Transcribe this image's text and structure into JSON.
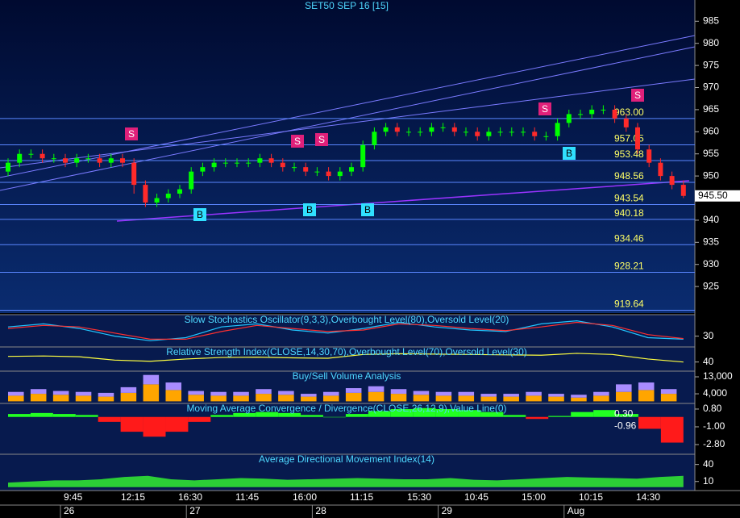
{
  "chart_data": [
    {
      "type": "candlestick",
      "title": "SET50 SEP 16  [15]",
      "open": [
        951,
        953,
        955,
        955,
        954,
        954,
        953,
        954,
        954,
        953,
        954,
        953,
        948,
        944,
        945,
        946,
        947,
        951,
        952,
        953,
        953,
        953,
        953,
        954,
        953,
        952,
        952,
        951,
        951,
        950,
        951,
        952,
        957,
        960,
        961,
        960,
        960,
        960,
        961,
        961,
        960,
        960,
        959,
        960,
        960,
        960,
        960,
        959,
        959,
        962,
        964,
        964,
        965,
        965,
        963,
        961,
        956,
        953,
        950,
        948
      ],
      "high": [
        954,
        956,
        956,
        956,
        955,
        955,
        955,
        955,
        955,
        955,
        955,
        954,
        949,
        946,
        947,
        948,
        952,
        953,
        954,
        954,
        954,
        954,
        955,
        955,
        954,
        953,
        953,
        952,
        952,
        952,
        953,
        958,
        961,
        962,
        962,
        961,
        961,
        962,
        962,
        962,
        961,
        961,
        961,
        961,
        961,
        961,
        961,
        960,
        963,
        965,
        965,
        966,
        966,
        966,
        964,
        962,
        957,
        954,
        951,
        949
      ],
      "low": [
        950,
        952,
        954,
        953,
        953,
        952,
        952,
        953,
        952,
        952,
        952,
        946,
        943,
        943,
        944,
        945,
        946,
        950,
        951,
        952,
        952,
        952,
        952,
        952,
        951,
        951,
        950,
        950,
        949,
        949,
        950,
        951,
        956,
        959,
        959,
        959,
        959,
        959,
        960,
        959,
        959,
        958,
        958,
        959,
        959,
        959,
        958,
        958,
        958,
        961,
        963,
        963,
        964,
        962,
        960,
        955,
        952,
        949,
        947,
        945
      ],
      "close": [
        953,
        955,
        955,
        954,
        954,
        953,
        954,
        954,
        953,
        954,
        953,
        948,
        944,
        945,
        946,
        947,
        951,
        952,
        953,
        953,
        953,
        953,
        954,
        953,
        952,
        952,
        951,
        951,
        950,
        951,
        952,
        957,
        960,
        961,
        960,
        960,
        960,
        961,
        961,
        960,
        960,
        959,
        960,
        960,
        960,
        960,
        959,
        959,
        962,
        964,
        964,
        965,
        965,
        963,
        961,
        956,
        953,
        950,
        948,
        945.5
      ],
      "up_color": "#00ff00",
      "down_color": "#ff2a2a",
      "ylim": [
        919,
        989.8
      ],
      "yticks": [
        925,
        930,
        935,
        940,
        945,
        950,
        955,
        960,
        965,
        970,
        975,
        980,
        985
      ],
      "levels": [
        {
          "value": 963,
          "label": "963.00"
        },
        957.05,
        953.48,
        948.56,
        943.54,
        940.18,
        934.46,
        928.21,
        919.64
      ],
      "last_price": {
        "value": 945.5,
        "label": "945.50"
      },
      "sell_signals": [
        "S",
        "S",
        "S",
        "S",
        "S"
      ],
      "buy_signals": [
        "B",
        "B",
        "B",
        "B"
      ],
      "time_labels": [
        null,
        null,
        null,
        null,
        null,
        "9:45",
        null,
        null,
        null,
        null,
        "12:15",
        null,
        null,
        null,
        null,
        "16:30",
        null,
        null,
        null,
        null,
        "11:45",
        null,
        null,
        null,
        null,
        "16:00",
        null,
        null,
        null,
        null,
        "11:15",
        null,
        null,
        null,
        null,
        "15:30",
        null,
        null,
        null,
        null,
        "10:45",
        null,
        null,
        null,
        null,
        "15:00",
        null,
        null,
        null,
        null,
        "10:15",
        null,
        null,
        null,
        null,
        "14:30",
        null,
        null,
        null,
        null
      ],
      "date_labels": [
        null,
        null,
        null,
        null,
        null,
        "26",
        null,
        null,
        null,
        null,
        null,
        null,
        null,
        null,
        null,
        null,
        "27",
        null,
        null,
        null,
        null,
        null,
        null,
        null,
        null,
        null,
        null,
        "28",
        null,
        null,
        null,
        null,
        null,
        null,
        null,
        null,
        null,
        null,
        "29",
        null,
        null,
        null,
        null,
        null,
        null,
        null,
        null,
        null,
        null,
        "Aug",
        null,
        null,
        null,
        null,
        null,
        null,
        null,
        null,
        null,
        null
      ]
    },
    {
      "type": "line",
      "title": "Slow Stochastics Oscillator(9,3,3),Overbought Level(80),Oversold Level(20)",
      "series": [
        {
          "color": "#22c6ff",
          "values": [
            60,
            70,
            55,
            30,
            15,
            25,
            60,
            70,
            50,
            40,
            55,
            75,
            60,
            50,
            45,
            70,
            80,
            60,
            25,
            20
          ]
        },
        {
          "color": "#ff3030",
          "values": [
            55,
            65,
            60,
            40,
            20,
            20,
            45,
            65,
            55,
            45,
            50,
            70,
            65,
            55,
            48,
            60,
            75,
            65,
            35,
            22
          ]
        }
      ],
      "ylim": [
        0,
        100
      ],
      "yticks": [
        30
      ]
    },
    {
      "type": "line",
      "title": "Relative Strength Index(CLOSE,14,30,70),Overbought Level(70),Oversold Level(30)",
      "series": [
        {
          "color": "#ffff40",
          "values": [
            55,
            56,
            54,
            45,
            42,
            48,
            52,
            53,
            51,
            50,
            60,
            62,
            61,
            60,
            59,
            58,
            63,
            60,
            48,
            40
          ]
        }
      ],
      "ylim": [
        20,
        80
      ],
      "yticks": [
        40
      ]
    },
    {
      "type": "stacked_bar",
      "title": "Buy/Sell Volume Analysis",
      "series": [
        {
          "color": "#ffa500",
          "values": [
            3000,
            4000,
            3500,
            3000,
            2500,
            4500,
            9000,
            6000,
            3500,
            3000,
            3000,
            4000,
            3500,
            2500,
            3000,
            4500,
            5000,
            4000,
            3500,
            3000,
            3000,
            2500,
            2500,
            3000,
            2500,
            2000,
            3000,
            5000,
            6000,
            4000
          ]
        },
        {
          "color": "#a88cff",
          "values": [
            2000,
            2500,
            2000,
            2000,
            2000,
            3000,
            5000,
            4000,
            2000,
            2000,
            2000,
            2500,
            2000,
            1500,
            2000,
            2500,
            3000,
            2500,
            2000,
            2000,
            2000,
            1500,
            1500,
            2000,
            1500,
            1500,
            2000,
            4000,
            4000,
            2500
          ]
        }
      ],
      "ylim": [
        -1100,
        16000
      ],
      "yticks": [
        {
          "value": 13000,
          "label": "13,000"
        },
        {
          "value": 4000,
          "label": "4,000"
        }
      ]
    },
    {
      "type": "signed_bar",
      "title": "Moving Average Convergence / Divergence(CLOSE,26,12,9),Value Line(0)",
      "values": [
        0.3,
        0.4,
        0.3,
        0.2,
        -0.5,
        -1.5,
        -2.0,
        -1.5,
        -0.5,
        0.2,
        0.4,
        0.5,
        0.4,
        0.2,
        0.0,
        0.3,
        0.6,
        0.8,
        0.9,
        0.8,
        0.7,
        0.5,
        0.2,
        -0.2,
        0.1,
        0.5,
        0.7,
        0.3,
        -1.2,
        -2.6
      ],
      "up_color": "#22ff22",
      "down_color": "#ff1a1a",
      "markers": [
        {
          "value": 0.3,
          "label": "0.30"
        },
        {
          "value": -0.96,
          "label": "-0.96"
        }
      ],
      "ylim": [
        -3.7,
        1.37
      ],
      "yticks": [
        {
          "value": 0.8,
          "label": "0.80"
        },
        {
          "value": -1,
          "label": "-1.00"
        },
        {
          "value": -2.8,
          "label": "-2.80"
        }
      ]
    },
    {
      "type": "area",
      "title": "Average Directional Movement Index(14)",
      "values": [
        8,
        10,
        12,
        12,
        14,
        18,
        20,
        14,
        12,
        14,
        16,
        15,
        13,
        14,
        15,
        16,
        15,
        14,
        14,
        16,
        13,
        12,
        14,
        16,
        18,
        17,
        16,
        15,
        18,
        20
      ],
      "color": "#33ee33",
      "ylim": [
        -6,
        58
      ],
      "yticks": [
        40,
        10
      ]
    }
  ]
}
